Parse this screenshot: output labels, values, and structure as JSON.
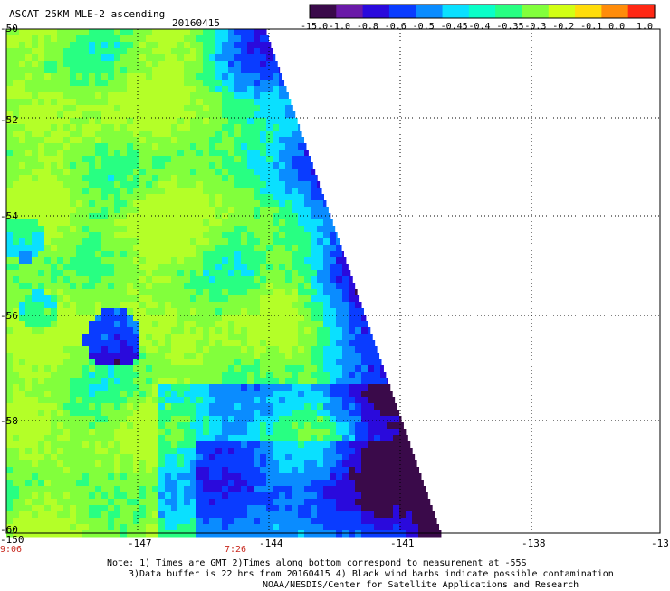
{
  "header": {
    "title": "ASCAT 25KM MLE-2 ascending",
    "date": "20160415"
  },
  "colorbar": {
    "labels": [
      "-15.0",
      "-1.0",
      "-0.8",
      "-0.6",
      "-0.5",
      "-0.45",
      "-0.4",
      "-0.35",
      "-0.3",
      "-0.2",
      "-0.1",
      "0.0",
      "1.0"
    ],
    "colors": [
      "#3a0a4a",
      "#6a1aa8",
      "#2a0adc",
      "#0a3cff",
      "#0a8cff",
      "#0ae0ff",
      "#0affc8",
      "#28ff82",
      "#82ff3c",
      "#d2ff14",
      "#ffdc0a",
      "#ff8c0a",
      "#ff2814"
    ]
  },
  "map": {
    "lon_labels": [
      "-150",
      "-147",
      "-144",
      "-141",
      "-138",
      "-13"
    ],
    "lat_labels": [
      "-50",
      "-52",
      "-54",
      "-56",
      "-58",
      "-60"
    ],
    "time_labels": [
      "9:06",
      "7:26"
    ]
  },
  "notes": {
    "line1": "Note: 1) Times are GMT 2)Times along bottom correspond to measurement at -55S",
    "line2": "3)Data buffer is 22 hrs from 20160415 4) Black wind barbs indicate possible contamination",
    "line3": "NOAA/NESDIS/Center for Satellite Applications and Research"
  }
}
